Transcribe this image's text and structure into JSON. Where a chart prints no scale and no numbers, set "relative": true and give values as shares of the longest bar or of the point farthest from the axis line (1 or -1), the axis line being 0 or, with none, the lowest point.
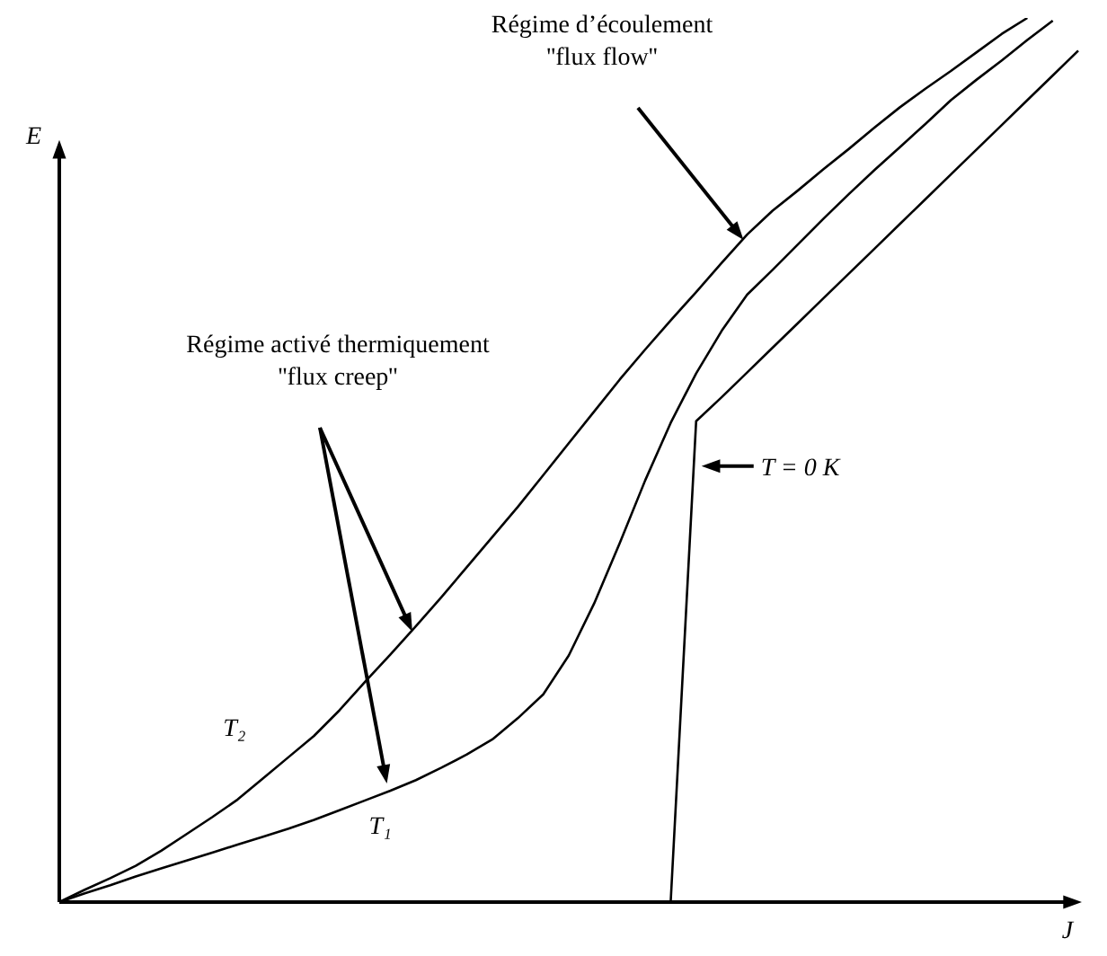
{
  "chart_data": {
    "type": "line",
    "relative": true,
    "xlabel": "J",
    "ylabel": "E",
    "line_style": "solid",
    "marker": "none",
    "categories": [
      null,
      null,
      null,
      null,
      null,
      null,
      null,
      null,
      null,
      null,
      null,
      null,
      null,
      null,
      null,
      null,
      null,
      null,
      null,
      null,
      null,
      null,
      null,
      null,
      null,
      null,
      null,
      null,
      null,
      null,
      null,
      null,
      null,
      null,
      null,
      null,
      null,
      null,
      null,
      null,
      null
    ],
    "series": [
      {
        "name": "T₂",
        "color": "#000000",
        "values": [
          0,
          0.014,
          0.027,
          0.041,
          0.058,
          0.077,
          0.096,
          0.116,
          0.14,
          0.164,
          0.188,
          0.217,
          0.249,
          0.28,
          0.312,
          0.345,
          0.379,
          0.413,
          0.447,
          0.483,
          0.519,
          0.555,
          0.591,
          0.625,
          0.658,
          0.69,
          0.723,
          0.755,
          0.782,
          0.805,
          0.829,
          0.852,
          0.876,
          0.899,
          0.92,
          0.94,
          0.961,
          0.982,
          1.0,
          null,
          null
        ]
      },
      {
        "name": "T₁",
        "color": "#000000",
        "values": [
          0,
          0.01,
          0.019,
          0.029,
          0.038,
          0.047,
          0.056,
          0.065,
          0.074,
          0.083,
          0.093,
          0.104,
          0.115,
          0.126,
          0.138,
          0.152,
          0.167,
          0.184,
          0.208,
          0.235,
          0.279,
          0.338,
          0.406,
          0.477,
          0.542,
          0.598,
          0.646,
          0.687,
          0.715,
          0.744,
          0.773,
          0.801,
          0.828,
          0.854,
          0.88,
          0.907,
          0.93,
          0.952,
          0.975,
          0.997,
          null
        ]
      },
      {
        "name": "T = 0 K",
        "color": "#000000",
        "values": [
          0,
          0,
          0,
          0,
          0,
          0,
          0,
          0,
          0,
          0,
          0,
          0,
          0,
          0,
          0,
          0,
          0,
          0,
          0,
          0,
          0,
          0,
          0,
          0,
          0,
          0.544,
          0.571,
          0.599,
          0.627,
          0.655,
          0.683,
          0.711,
          0.739,
          0.767,
          0.795,
          0.823,
          0.851,
          0.879,
          0.907,
          0.935,
          0.963
        ]
      }
    ],
    "annotations": [
      "Régime d’écoulement\n''flux flow''",
      "Régime activé thermiquement\n''flux creep''"
    ]
  }
}
